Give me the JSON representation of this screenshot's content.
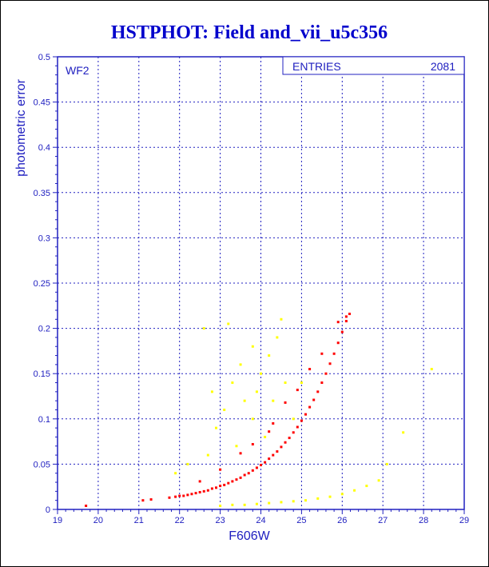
{
  "chart_data": {
    "type": "scatter",
    "title": "HSTPHOT: Field and_vii_u5c356",
    "xlabel": "F606W",
    "ylabel": "photometric error",
    "panel_label": "WF2",
    "stats_label": "ENTRIES",
    "stats_value": "2081",
    "xlim": [
      19,
      29
    ],
    "ylim": [
      0,
      0.5
    ],
    "xticks": [
      "19",
      "20",
      "21",
      "22",
      "23",
      "24",
      "25",
      "26",
      "27",
      "28",
      "29"
    ],
    "yticks": [
      "0",
      "0.05",
      "0.1",
      "0.15",
      "0.2",
      "0.25",
      "0.3",
      "0.35",
      "0.4",
      "0.45",
      "0.5"
    ],
    "grid": true,
    "colors": {
      "title": "#0000cc",
      "axes": "#2020c0",
      "grid": "#2020c0",
      "red": "#ff0000",
      "yellow": "#ffff00"
    },
    "series": [
      {
        "color": "#ff0000",
        "points": [
          [
            21.75,
            0.013
          ],
          [
            21.9,
            0.014
          ],
          [
            22.0,
            0.015
          ],
          [
            22.1,
            0.015
          ],
          [
            22.2,
            0.016
          ],
          [
            22.3,
            0.017
          ],
          [
            22.4,
            0.018
          ],
          [
            22.5,
            0.019
          ],
          [
            22.6,
            0.02
          ],
          [
            22.7,
            0.021
          ],
          [
            22.8,
            0.023
          ],
          [
            22.9,
            0.024
          ],
          [
            23.0,
            0.026
          ],
          [
            23.1,
            0.027
          ],
          [
            23.2,
            0.029
          ],
          [
            23.3,
            0.031
          ],
          [
            23.4,
            0.033
          ],
          [
            23.5,
            0.035
          ],
          [
            23.6,
            0.038
          ],
          [
            23.7,
            0.04
          ],
          [
            23.8,
            0.043
          ],
          [
            23.9,
            0.046
          ],
          [
            24.0,
            0.049
          ],
          [
            24.1,
            0.052
          ],
          [
            24.2,
            0.056
          ],
          [
            24.3,
            0.06
          ],
          [
            24.4,
            0.064
          ],
          [
            24.5,
            0.069
          ],
          [
            24.6,
            0.074
          ],
          [
            24.7,
            0.079
          ],
          [
            24.8,
            0.085
          ],
          [
            24.9,
            0.091
          ],
          [
            25.0,
            0.098
          ],
          [
            25.1,
            0.105
          ],
          [
            25.2,
            0.113
          ],
          [
            25.3,
            0.121
          ],
          [
            25.4,
            0.13
          ],
          [
            25.5,
            0.14
          ],
          [
            25.6,
            0.15
          ],
          [
            25.7,
            0.161
          ],
          [
            25.8,
            0.172
          ],
          [
            25.9,
            0.184
          ],
          [
            26.0,
            0.196
          ],
          [
            26.1,
            0.208
          ],
          [
            26.18,
            0.216
          ],
          [
            19.7,
            0.004
          ],
          [
            21.1,
            0.01
          ],
          [
            21.3,
            0.011
          ],
          [
            22.5,
            0.031
          ],
          [
            23.0,
            0.044
          ],
          [
            23.5,
            0.062
          ],
          [
            23.8,
            0.072
          ],
          [
            24.2,
            0.086
          ],
          [
            24.3,
            0.095
          ],
          [
            24.6,
            0.118
          ],
          [
            24.9,
            0.132
          ],
          [
            25.2,
            0.155
          ],
          [
            25.5,
            0.172
          ],
          [
            25.9,
            0.207
          ],
          [
            26.1,
            0.213
          ]
        ]
      },
      {
        "color": "#ffff00",
        "points": [
          [
            23.0,
            0.004
          ],
          [
            23.3,
            0.005
          ],
          [
            23.6,
            0.005
          ],
          [
            23.9,
            0.006
          ],
          [
            24.2,
            0.007
          ],
          [
            24.5,
            0.008
          ],
          [
            24.8,
            0.009
          ],
          [
            25.1,
            0.01
          ],
          [
            25.4,
            0.012
          ],
          [
            25.7,
            0.014
          ],
          [
            26.0,
            0.017
          ],
          [
            26.3,
            0.021
          ],
          [
            26.6,
            0.026
          ],
          [
            26.9,
            0.032
          ],
          [
            22.6,
            0.2
          ],
          [
            23.2,
            0.205
          ],
          [
            24.5,
            0.21
          ],
          [
            23.8,
            0.18
          ],
          [
            24.2,
            0.17
          ],
          [
            23.5,
            0.16
          ],
          [
            24.0,
            0.15
          ],
          [
            23.3,
            0.14
          ],
          [
            24.6,
            0.14
          ],
          [
            23.9,
            0.13
          ],
          [
            23.6,
            0.12
          ],
          [
            24.3,
            0.12
          ],
          [
            23.1,
            0.11
          ],
          [
            24.8,
            0.1
          ],
          [
            23.8,
            0.1
          ],
          [
            22.9,
            0.09
          ],
          [
            24.1,
            0.08
          ],
          [
            23.4,
            0.07
          ],
          [
            22.7,
            0.06
          ],
          [
            22.2,
            0.05
          ],
          [
            21.9,
            0.04
          ],
          [
            22.8,
            0.13
          ],
          [
            24.4,
            0.19
          ],
          [
            25.0,
            0.14
          ],
          [
            27.5,
            0.085
          ],
          [
            28.2,
            0.155
          ],
          [
            27.1,
            0.05
          ]
        ]
      }
    ]
  }
}
